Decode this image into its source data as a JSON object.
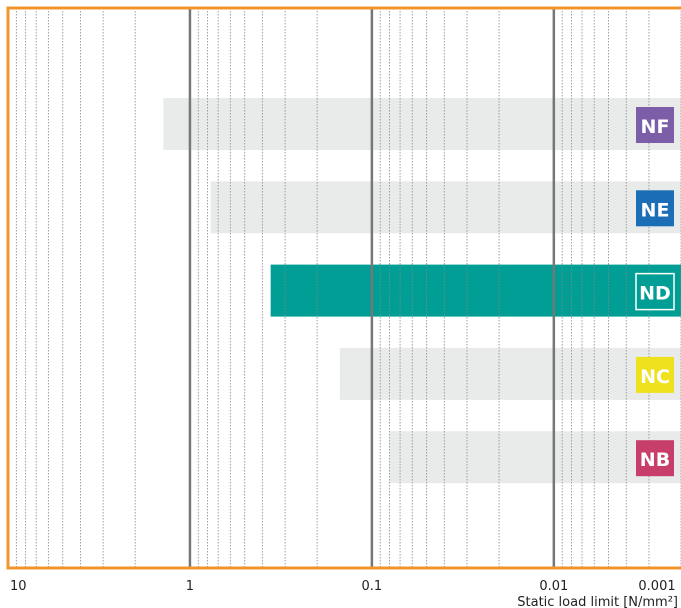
{
  "chart_data": {
    "type": "bar",
    "orientation": "horizontal",
    "x_label": "Static load limit [N/mm²]",
    "categories": [
      "NF",
      "NE",
      "ND",
      "NC",
      "NB"
    ],
    "values": [
      1.4,
      0.77,
      0.36,
      0.15,
      0.08
    ],
    "bar_colors": [
      "#e9ebeb",
      "#e9ebeb",
      "#009e94",
      "#e9ebeb",
      "#e9ebeb"
    ],
    "label_colors": [
      "#7b5ea7",
      "#1b6db5",
      "#009e94",
      "#f0e11e",
      "#c73e6a"
    ],
    "xscale": "log",
    "xlim": [
      10,
      0.002
    ],
    "xticks": [
      10,
      1,
      0.1,
      0.01,
      0.001
    ],
    "grid": true
  }
}
